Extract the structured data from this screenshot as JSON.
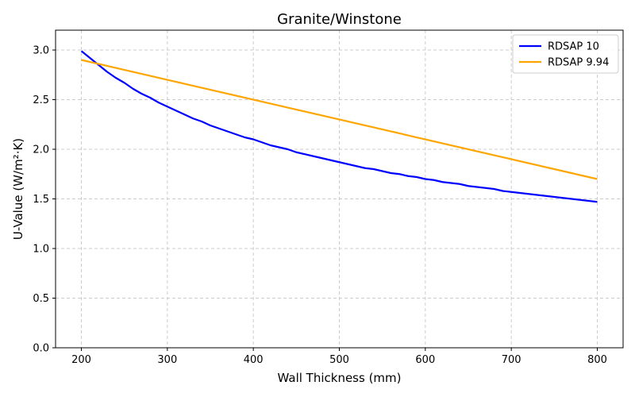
{
  "chart_data": {
    "type": "line",
    "title": "Granite/Winstone",
    "xlabel": "Wall Thickness (mm)",
    "ylabel": "U-Value (W/m²·K)",
    "xlim": [
      170,
      830
    ],
    "ylim": [
      0,
      3.2
    ],
    "xticks": [
      200,
      300,
      400,
      500,
      600,
      700,
      800
    ],
    "yticks": [
      0.0,
      0.5,
      1.0,
      1.5,
      2.0,
      2.5,
      3.0
    ],
    "grid": true,
    "legend_position": "top-right",
    "series": [
      {
        "name": "RDSAP 10",
        "color": "#0000ff",
        "x": [
          200,
          210,
          220,
          230,
          240,
          250,
          260,
          270,
          280,
          290,
          300,
          320,
          330,
          340,
          350,
          370,
          390,
          400,
          420,
          440,
          450,
          475,
          500,
          530,
          540,
          560,
          570,
          580,
          590,
          600,
          610,
          620,
          640,
          650,
          680,
          690,
          700,
          750,
          800
        ],
        "y": [
          2.99,
          2.92,
          2.85,
          2.78,
          2.72,
          2.67,
          2.61,
          2.56,
          2.52,
          2.47,
          2.43,
          2.35,
          2.31,
          2.28,
          2.24,
          2.18,
          2.12,
          2.1,
          2.04,
          2.0,
          1.97,
          1.92,
          1.87,
          1.81,
          1.8,
          1.76,
          1.75,
          1.73,
          1.72,
          1.7,
          1.69,
          1.67,
          1.65,
          1.63,
          1.6,
          1.58,
          1.57,
          1.52,
          1.47
        ]
      },
      {
        "name": "RDSAP 9.94",
        "color": "#ffa500",
        "x": [
          200,
          800
        ],
        "y": [
          2.9,
          1.7
        ]
      }
    ]
  }
}
